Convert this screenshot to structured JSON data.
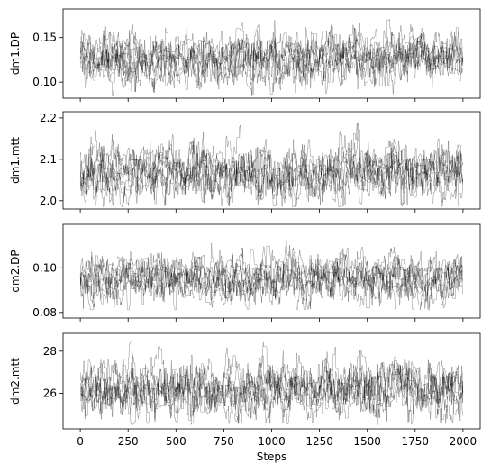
{
  "chart_data": {
    "type": "line",
    "description_layout": "four stacked trace panels sharing x axis",
    "xlabel": "Steps",
    "xlim": [
      -90,
      2090
    ],
    "xticks": [
      0,
      250,
      500,
      750,
      1000,
      1250,
      1500,
      1750,
      2000
    ],
    "n_steps": 2000,
    "n_walkers": 8,
    "series_color": "#000000",
    "panels": [
      {
        "ylabel": "dm1.DP",
        "ylim": [
          0.082,
          0.182
        ],
        "yticks": [
          0.1,
          0.15
        ],
        "ytick_labels": [
          "0.10",
          "0.15"
        ],
        "center": 0.127,
        "spread": 0.0105,
        "min": 0.085,
        "max": 0.178
      },
      {
        "ylabel": "dm1.mtt",
        "ylim": [
          1.98,
          2.215
        ],
        "yticks": [
          2.0,
          2.1,
          2.2
        ],
        "ytick_labels": [
          "2.0",
          "2.1",
          "2.2"
        ],
        "center": 2.07,
        "spread": 0.024,
        "min": 1.985,
        "max": 2.2
      },
      {
        "ylabel": "dm2.DP",
        "ylim": [
          0.0775,
          0.1195
        ],
        "yticks": [
          0.08,
          0.1
        ],
        "ytick_labels": [
          "0.08",
          "0.10"
        ],
        "center": 0.095,
        "spread": 0.0038,
        "min": 0.081,
        "max": 0.118
      },
      {
        "ylabel": "dm2.mtt",
        "ylim": [
          24.3,
          28.85
        ],
        "yticks": [
          26,
          28
        ],
        "ytick_labels": [
          "26",
          "28"
        ],
        "center": 26.2,
        "spread": 0.48,
        "min": 24.5,
        "max": 28.5
      }
    ]
  }
}
